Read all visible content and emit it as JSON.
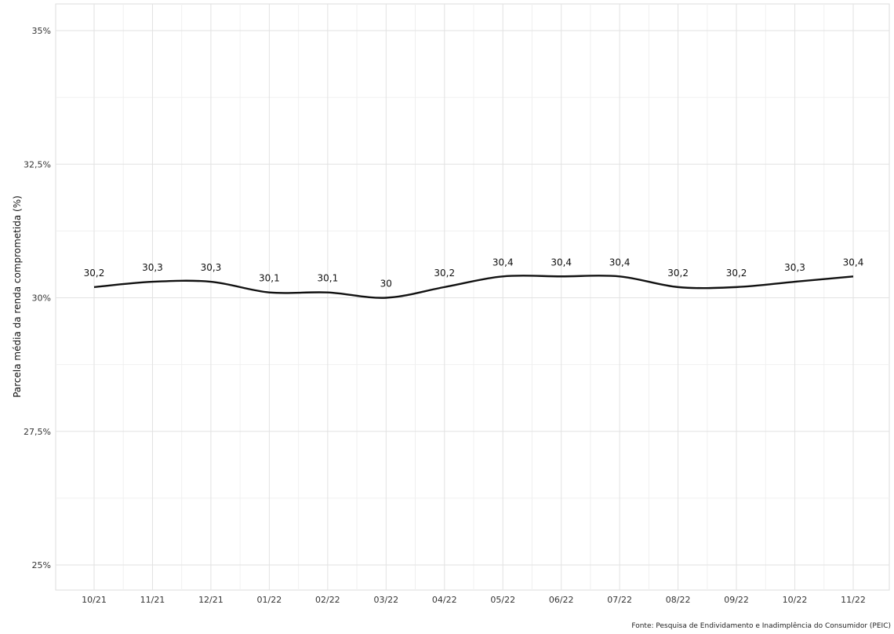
{
  "chart_data": {
    "type": "line",
    "categories": [
      "10/21",
      "11/21",
      "12/21",
      "01/22",
      "02/22",
      "03/22",
      "04/22",
      "05/22",
      "06/22",
      "07/22",
      "08/22",
      "09/22",
      "10/22",
      "11/22"
    ],
    "values": [
      30.2,
      30.3,
      30.3,
      30.1,
      30.1,
      30,
      30.2,
      30.4,
      30.4,
      30.4,
      30.2,
      30.2,
      30.3,
      30.4
    ],
    "data_labels": [
      "30,2",
      "30,3",
      "30,3",
      "30,1",
      "30,1",
      "30",
      "30,2",
      "30,4",
      "30,4",
      "30,4",
      "30,2",
      "30,2",
      "30,3",
      "30,4"
    ],
    "ylim": [
      25,
      35
    ],
    "yticks": [
      25,
      27.5,
      30,
      32.5,
      35
    ],
    "ytick_labels": [
      "25%",
      "27,5%",
      "30%",
      "32,5%",
      "35%"
    ],
    "ylabel": "Parcela média da renda comprometida (%)",
    "xlabel": "",
    "grid": true,
    "line_color": "#111111",
    "caption": "Fonte: Pesquisa de Endividamento e Inadimplência do Consumidor (PEIC)"
  }
}
